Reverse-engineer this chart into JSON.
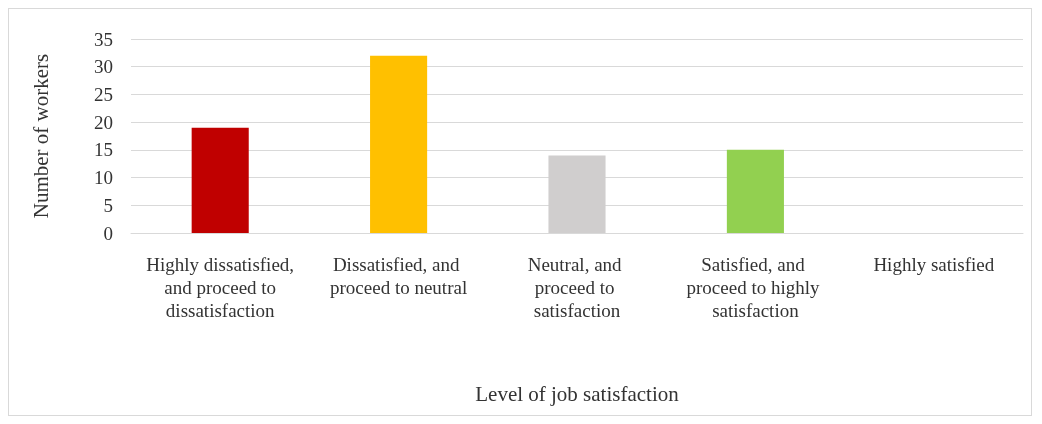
{
  "chart_data": {
    "type": "bar",
    "xlabel": "Level of job satisfaction",
    "ylabel": "Number of workers",
    "categories": [
      "Highly dissatisfied, and proceed to dissatisfaction",
      "Dissatisfied, and proceed to neutral",
      "Neutral, and proceed to satisfaction",
      "Satisfied, and proceed to highly satisfaction",
      "Highly satisfied"
    ],
    "values": [
      19,
      32,
      14,
      15,
      0
    ],
    "colors": [
      "#c00000",
      "#ffc000",
      "#d0cece",
      "#92d050",
      "#5b9bd5"
    ],
    "ylim": [
      0,
      35
    ],
    "yticks": [
      0,
      5,
      10,
      15,
      20,
      25,
      30,
      35
    ],
    "grid": "y"
  }
}
